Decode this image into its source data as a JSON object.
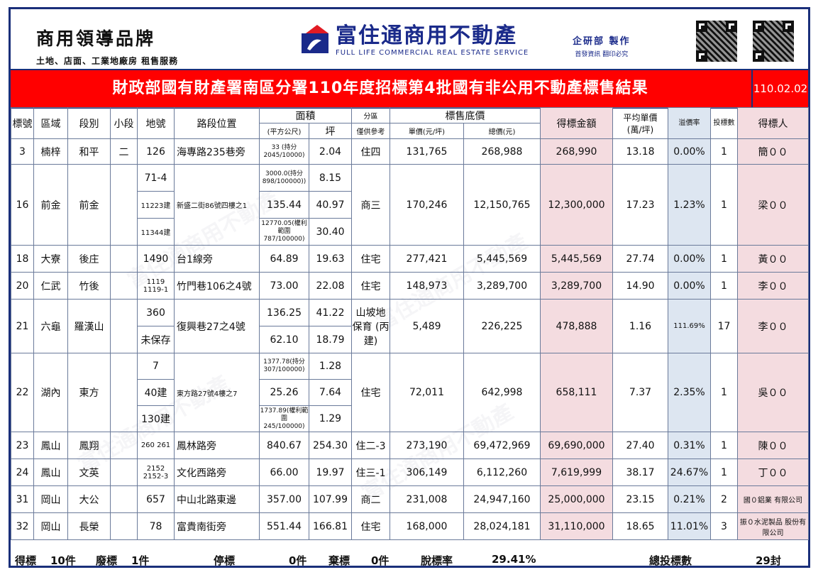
{
  "header": {
    "left_title": "商用領導品牌",
    "left_subtitle": "土地、店面、工業地廠房 租售服務",
    "company_name": "富住通商用不動產",
    "company_en": "FULL LIFE COMMERCIAL REAL ESTATE SERVICE",
    "dept": "企研部 製作",
    "dept_sub": "首發資訊 翻印必究"
  },
  "title": "財政部國有財產署南區分署110年度招標第4批國有非公用不動產標售結果",
  "date": "110.02.02",
  "columns": {
    "no": "標號",
    "area": "區域",
    "section": "段別",
    "subsection": "小段",
    "lot": "地號",
    "road": "路段位置",
    "size": "面積",
    "size_m2": "(平方公尺)",
    "size_ping": "坪",
    "zone": "分區",
    "zone_sub": "僅供參考",
    "price": "標售底價",
    "unit_price": "單價(元/坪)",
    "total_price": "總價(元)",
    "won": "得標金額",
    "avg": "平均單價",
    "avg_unit": "(萬/坪)",
    "premium": "溢價率",
    "bids": "投標數",
    "winner": "得標人"
  },
  "rows": [
    {
      "no": "3",
      "area": "楠梓",
      "section": "和平",
      "subsection": "二",
      "lots": [
        "126"
      ],
      "road": "海專路235巷旁",
      "m2": [
        "33 (持分 2045/10000)"
      ],
      "ping": [
        "2.04"
      ],
      "zone": "住四",
      "unit": "131,765",
      "total": "268,988",
      "won": "268,990",
      "avg": "13.18",
      "premium": "0.00%",
      "bids": "1",
      "winner": "簡００"
    },
    {
      "no": "16",
      "area": "前金",
      "section": "前金",
      "subsection": "",
      "lots": [
        "71-4",
        "11223建",
        "11344建"
      ],
      "road": "新盛二街86號四樓之1",
      "m2": [
        "3000.0(持分 898/100000))",
        "135.44",
        "12770.05(權利範圍 787/100000)"
      ],
      "ping": [
        "8.15",
        "40.97",
        "30.40"
      ],
      "zone": "商三",
      "unit": "170,246",
      "total": "12,150,765",
      "won": "12,300,000",
      "avg": "17.23",
      "premium": "1.23%",
      "bids": "1",
      "winner": "梁００"
    },
    {
      "no": "18",
      "area": "大寮",
      "section": "後庄",
      "subsection": "",
      "lots": [
        "1490"
      ],
      "road": "台1線旁",
      "m2": [
        "64.89"
      ],
      "ping": [
        "19.63"
      ],
      "zone": "住宅",
      "unit": "277,421",
      "total": "5,445,569",
      "won": "5,445,569",
      "avg": "27.74",
      "premium": "0.00%",
      "bids": "1",
      "winner": "黃００"
    },
    {
      "no": "20",
      "area": "仁武",
      "section": "竹後",
      "subsection": "",
      "lots": [
        "1119 1119-1"
      ],
      "road": "竹門巷106之4號",
      "m2": [
        "73.00"
      ],
      "ping": [
        "22.08"
      ],
      "zone": "住宅",
      "unit": "148,973",
      "total": "3,289,700",
      "won": "3,289,700",
      "avg": "14.90",
      "premium": "0.00%",
      "bids": "1",
      "winner": "李００"
    },
    {
      "no": "21",
      "area": "六龜",
      "section": "羅漢山",
      "subsection": "",
      "lots": [
        "360",
        "未保存"
      ],
      "road": "復興巷27之4號",
      "m2": [
        "136.25",
        "62.10"
      ],
      "ping": [
        "41.22",
        "18.79"
      ],
      "zone": "山坡地 保育 (丙建)",
      "unit": "5,489",
      "total": "226,225",
      "won": "478,888",
      "avg": "1.16",
      "premium": "111.69%",
      "bids": "17",
      "winner": "李００"
    },
    {
      "no": "22",
      "area": "湖內",
      "section": "東方",
      "subsection": "",
      "lots": [
        "7",
        "40建",
        "130建"
      ],
      "road": "東方路27號4樓之7",
      "m2": [
        "1377.78(持分 307/100000)",
        "25.26",
        "1737.89(權利範圍 245/100000)"
      ],
      "ping": [
        "1.28",
        "7.64",
        "1.29"
      ],
      "zone": "住宅",
      "unit": "72,011",
      "total": "642,998",
      "won": "658,111",
      "avg": "7.37",
      "premium": "2.35%",
      "bids": "1",
      "winner": "吳００"
    },
    {
      "no": "23",
      "area": "鳳山",
      "section": "鳳翔",
      "subsection": "",
      "lots": [
        "260 261"
      ],
      "road": "鳳林路旁",
      "m2": [
        "840.67"
      ],
      "ping": [
        "254.30"
      ],
      "zone": "住二-3",
      "unit": "273,190",
      "total": "69,472,969",
      "won": "69,690,000",
      "avg": "27.40",
      "premium": "0.31%",
      "bids": "1",
      "winner": "陳００"
    },
    {
      "no": "24",
      "area": "鳳山",
      "section": "文英",
      "subsection": "",
      "lots": [
        "2152 2152-3"
      ],
      "road": "文化西路旁",
      "m2": [
        "66.00"
      ],
      "ping": [
        "19.97"
      ],
      "zone": "住三-1",
      "unit": "306,149",
      "total": "6,112,260",
      "won": "7,619,999",
      "avg": "38.17",
      "premium": "24.67%",
      "bids": "1",
      "winner": "丁００"
    },
    {
      "no": "31",
      "area": "岡山",
      "section": "大公",
      "subsection": "",
      "lots": [
        "657"
      ],
      "road": "中山北路東邊",
      "m2": [
        "357.00"
      ],
      "ping": [
        "107.99"
      ],
      "zone": "商二",
      "unit": "231,008",
      "total": "24,947,160",
      "won": "25,000,000",
      "avg": "23.15",
      "premium": "0.21%",
      "bids": "2",
      "winner": "國０鋁業 有限公司"
    },
    {
      "no": "32",
      "area": "岡山",
      "section": "長榮",
      "subsection": "",
      "lots": [
        "78"
      ],
      "road": "富貴南街旁",
      "m2": [
        "551.44"
      ],
      "ping": [
        "166.81"
      ],
      "zone": "住宅",
      "unit": "168,000",
      "total": "28,024,181",
      "won": "31,110,000",
      "avg": "18.65",
      "premium": "11.01%",
      "bids": "3",
      "winner": "振０水泥製品 股份有限公司"
    }
  ],
  "footer": {
    "won_label": "得標",
    "won_count": "10件",
    "fail_label": "廢標",
    "fail_count": "1件",
    "stop_label": "停標",
    "stop_count": "0件",
    "abandon_label": "棄標",
    "abandon_count": "0件",
    "rate_label": "脫標率",
    "rate": "29.41%",
    "total_label": "總投標數",
    "total": "29封"
  }
}
